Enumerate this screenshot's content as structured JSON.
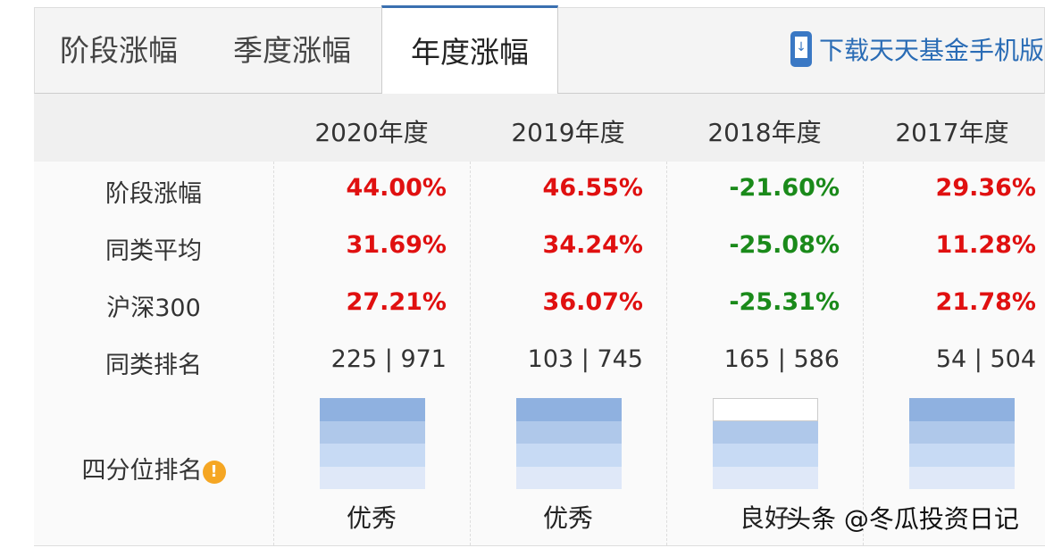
{
  "tabs": [
    {
      "label": "阶段涨幅"
    },
    {
      "label": "季度涨幅"
    },
    {
      "label": "年度涨幅",
      "active": true
    }
  ],
  "download": {
    "label": "下载天天基金手机版",
    "icon": "phone-download-icon"
  },
  "years": [
    "2020年度",
    "2019年度",
    "2018年度",
    "2017年度"
  ],
  "rows": [
    {
      "label": "阶段涨幅",
      "values": [
        "44.00%",
        "46.55%",
        "-21.60%",
        "29.36%"
      ]
    },
    {
      "label": "同类平均",
      "values": [
        "31.69%",
        "34.24%",
        "-25.08%",
        "11.28%"
      ]
    },
    {
      "label": "沪深300",
      "values": [
        "27.21%",
        "36.07%",
        "-25.31%",
        "21.78%"
      ]
    },
    {
      "label": "同类排名",
      "values": [
        "225 | 971",
        "103 | 745",
        "165 | 586",
        "54 | 504"
      ]
    }
  ],
  "quartile": {
    "label": "四分位排名",
    "icon": "info-icon",
    "levels": [
      4,
      4,
      3,
      4
    ],
    "ratings": [
      "优秀",
      "优秀",
      "良好",
      ""
    ]
  },
  "colors": {
    "up": "#e01010",
    "down": "#1a8a1a",
    "bands": [
      "#8fb1e0",
      "#afc8ea",
      "#c7daf4",
      "#dfe8f8"
    ]
  },
  "watermark": "头条 @冬瓜投资日记"
}
